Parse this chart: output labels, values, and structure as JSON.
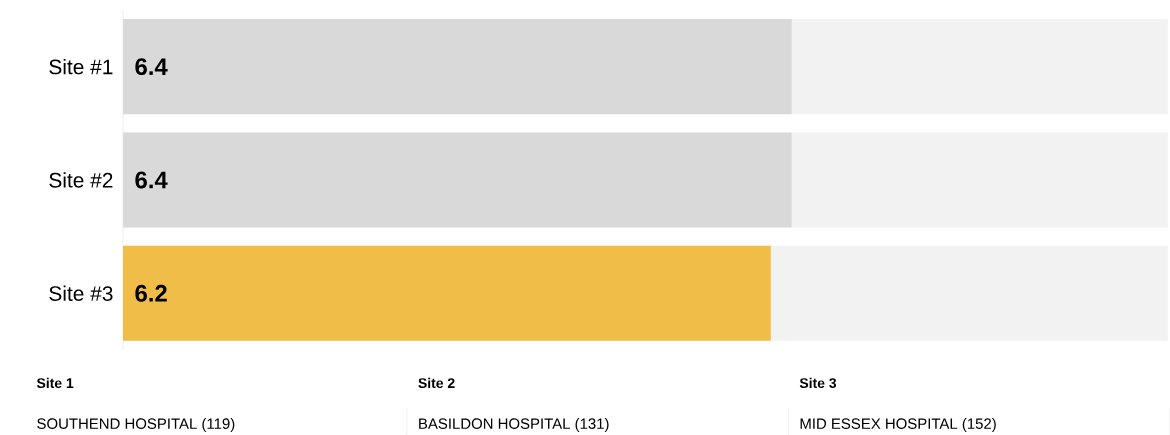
{
  "chart_data": {
    "type": "bar",
    "orientation": "horizontal",
    "categories": [
      "Site #1",
      "Site #2",
      "Site #3"
    ],
    "values": [
      6.4,
      6.4,
      6.2
    ],
    "colors": [
      "#d9d9d9",
      "#d9d9d9",
      "#f0be48"
    ],
    "xlim": [
      0,
      10
    ],
    "data_labels": true,
    "tick_labels": "y",
    "annotations": [
      "Site 1",
      "SOUTHEND HOSPITAL (119)",
      "Site 2",
      "BASILDON HOSPITAL (131)",
      "Site 3",
      "MID ESSEX HOSPITAL (152)"
    ]
  }
}
